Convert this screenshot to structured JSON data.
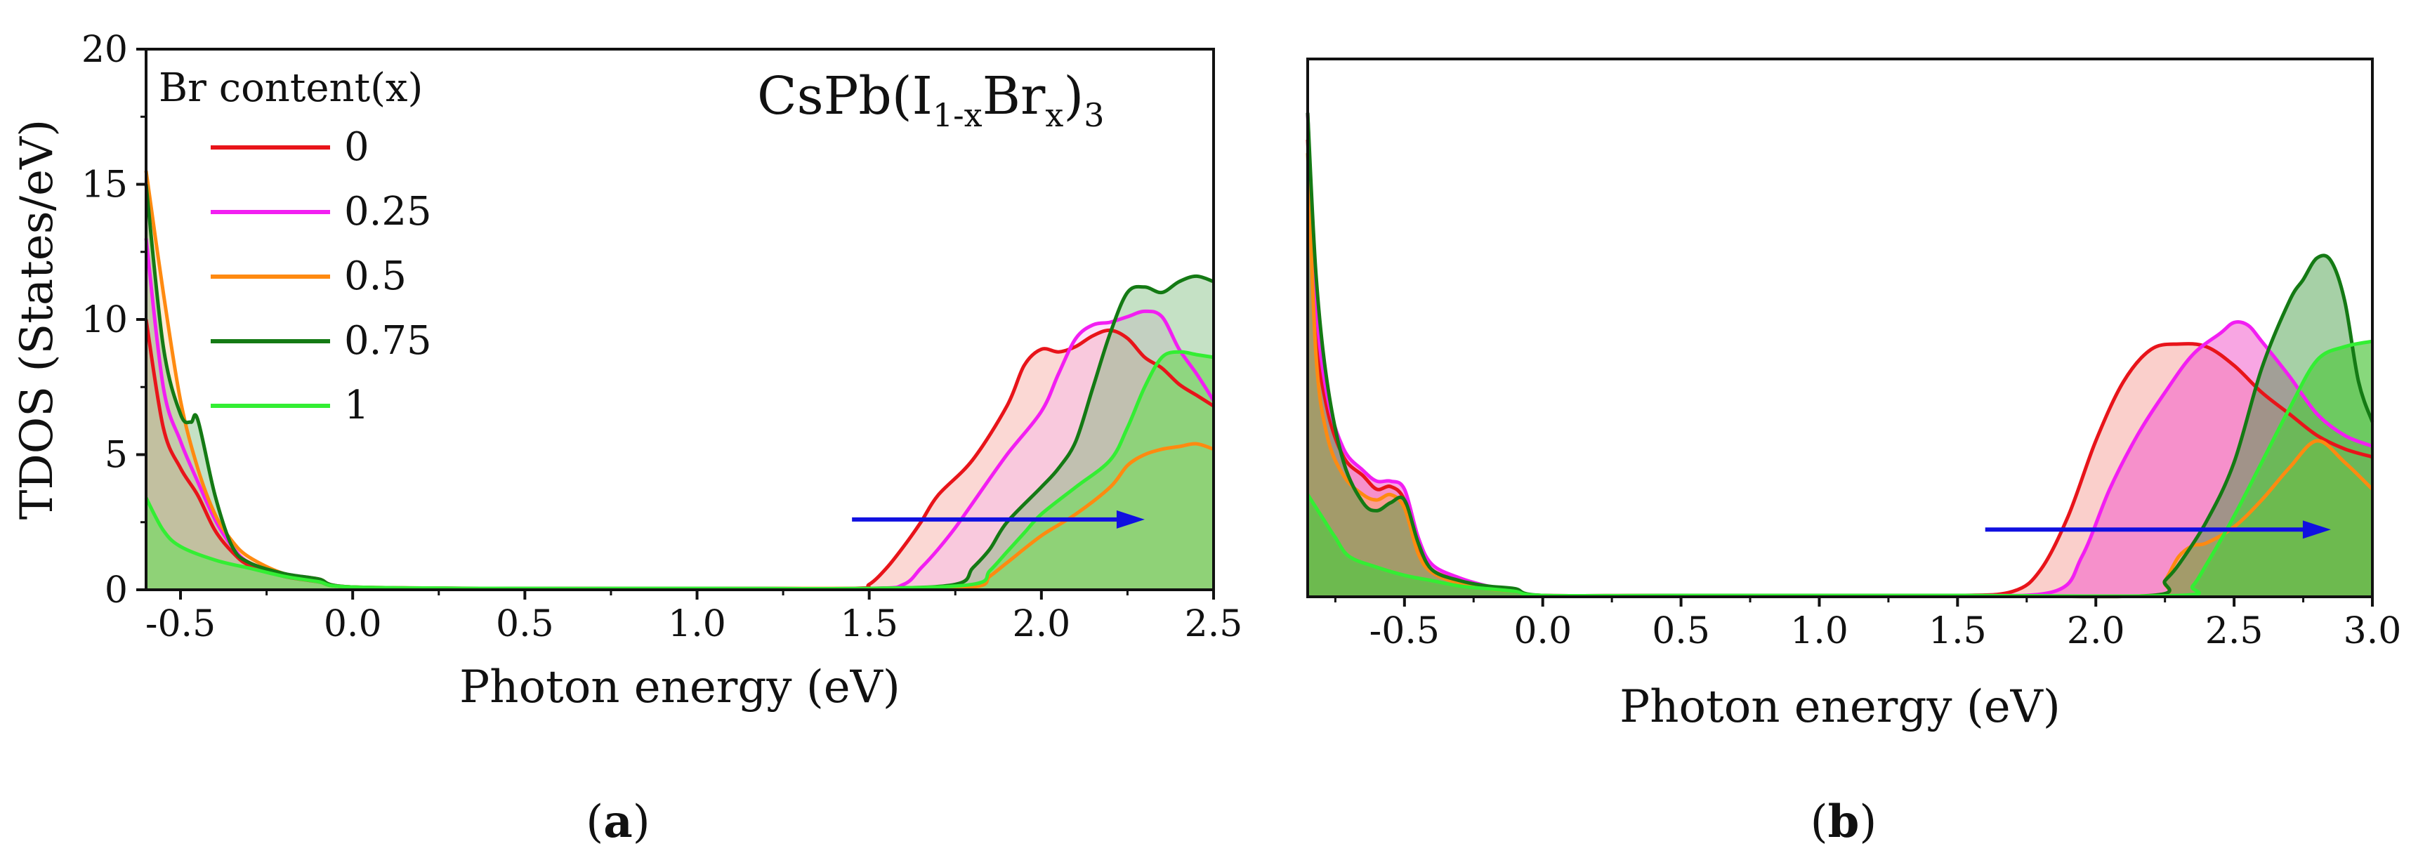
{
  "figure": {
    "panel_labels": [
      "(",
      "a",
      ")",
      "(",
      "b",
      ")"
    ]
  },
  "chart_data": [
    {
      "type": "area",
      "panel": "a",
      "xlabel": "Photon energy (eV)",
      "ylabel": "TDOS (States/eV)",
      "xlim": [
        -0.6,
        2.5
      ],
      "ylim": [
        0,
        20
      ],
      "xticks": [
        -0.5,
        0.0,
        0.5,
        1.0,
        1.5,
        2.0,
        2.5
      ],
      "xtick_labels": [
        "-0.5",
        "0.0",
        "0.5",
        "1.0",
        "1.5",
        "2.0",
        "2.5"
      ],
      "yticks": [
        0,
        5,
        10,
        15,
        20
      ],
      "ytick_labels": [
        "0",
        "5",
        "10",
        "15",
        "20"
      ],
      "grid": false,
      "formula": {
        "base": "CsPb(I",
        "sub1": "1-x",
        "mid": "Br",
        "sub2": "x",
        "close": ")",
        "sub3": "3"
      },
      "legend": {
        "title": "Br content(x)",
        "placement": "top-left"
      },
      "arrow": {
        "from": [
          1.45,
          2.6
        ],
        "to": [
          2.3,
          2.6
        ],
        "color": "#1010e0"
      },
      "series": [
        {
          "name": "0",
          "color": "#e8141a",
          "fill": "#f6a8a0",
          "fill_opacity": 0.45,
          "x": [
            -0.6,
            -0.55,
            -0.5,
            -0.45,
            -0.4,
            -0.35,
            -0.3,
            -0.2,
            -0.1,
            0.0,
            0.5,
            1.0,
            1.45,
            1.5,
            1.55,
            1.6,
            1.65,
            1.7,
            1.8,
            1.9,
            1.95,
            2.0,
            2.05,
            2.1,
            2.15,
            2.2,
            2.25,
            2.3,
            2.35,
            2.4,
            2.45,
            2.5
          ],
          "y": [
            10.0,
            6.0,
            4.5,
            3.5,
            2.2,
            1.4,
            0.9,
            0.5,
            0.3,
            0.1,
            0.05,
            0.05,
            0.05,
            0.2,
            0.8,
            1.6,
            2.5,
            3.5,
            4.8,
            6.8,
            8.3,
            8.9,
            8.8,
            9.0,
            9.4,
            9.6,
            9.3,
            8.6,
            8.2,
            7.6,
            7.2,
            6.8
          ]
        },
        {
          "name": "0.25",
          "color": "#f21ef2",
          "fill": "#f7b0ee",
          "fill_opacity": 0.35,
          "x": [
            -0.6,
            -0.55,
            -0.5,
            -0.45,
            -0.4,
            -0.35,
            -0.3,
            -0.2,
            -0.1,
            0.0,
            0.5,
            1.0,
            1.5,
            1.6,
            1.65,
            1.7,
            1.75,
            1.8,
            1.9,
            2.0,
            2.05,
            2.1,
            2.15,
            2.2,
            2.25,
            2.3,
            2.35,
            2.4,
            2.45,
            2.5
          ],
          "y": [
            13.0,
            7.5,
            5.5,
            4.0,
            2.6,
            1.6,
            1.0,
            0.6,
            0.4,
            0.1,
            0.05,
            0.05,
            0.05,
            0.2,
            0.8,
            1.5,
            2.3,
            3.2,
            5.0,
            6.6,
            8.0,
            9.3,
            9.8,
            9.9,
            10.1,
            10.3,
            10.1,
            8.9,
            8.0,
            7.0
          ]
        },
        {
          "name": "0.5",
          "color": "#ff8a10",
          "fill": "#ffc890",
          "fill_opacity": 0.35,
          "x": [
            -0.6,
            -0.55,
            -0.5,
            -0.45,
            -0.4,
            -0.35,
            -0.3,
            -0.2,
            -0.1,
            0.0,
            0.5,
            1.0,
            1.5,
            1.8,
            1.85,
            1.9,
            2.0,
            2.1,
            2.2,
            2.25,
            2.3,
            2.35,
            2.4,
            2.45,
            2.5
          ],
          "y": [
            15.5,
            11.0,
            7.0,
            4.5,
            2.8,
            1.8,
            1.2,
            0.6,
            0.4,
            0.1,
            0.05,
            0.05,
            0.05,
            0.1,
            0.5,
            1.0,
            2.0,
            2.8,
            3.8,
            4.6,
            5.0,
            5.2,
            5.3,
            5.4,
            5.2
          ]
        },
        {
          "name": "0.75",
          "color": "#147a14",
          "fill": "#6fb46f",
          "fill_opacity": 0.4,
          "x": [
            -0.6,
            -0.55,
            -0.5,
            -0.47,
            -0.45,
            -0.4,
            -0.35,
            -0.3,
            -0.2,
            -0.1,
            0.0,
            0.5,
            1.0,
            1.5,
            1.75,
            1.8,
            1.85,
            1.9,
            2.0,
            2.05,
            2.1,
            2.15,
            2.2,
            2.25,
            2.3,
            2.35,
            2.4,
            2.45,
            2.5
          ],
          "y": [
            15.0,
            9.0,
            6.5,
            6.2,
            6.3,
            3.5,
            1.6,
            1.0,
            0.6,
            0.4,
            0.1,
            0.05,
            0.05,
            0.05,
            0.2,
            0.8,
            1.5,
            2.5,
            3.8,
            4.5,
            5.5,
            7.5,
            9.5,
            11.0,
            11.2,
            11.0,
            11.4,
            11.6,
            11.4
          ]
        },
        {
          "name": "1",
          "color": "#33ee33",
          "fill": "#7dd86a",
          "fill_opacity": 0.75,
          "x": [
            -0.6,
            -0.55,
            -0.5,
            -0.4,
            -0.3,
            -0.2,
            -0.1,
            0.0,
            0.5,
            1.0,
            1.5,
            1.8,
            1.85,
            1.9,
            1.95,
            2.0,
            2.1,
            2.2,
            2.25,
            2.3,
            2.35,
            2.4,
            2.45,
            2.5
          ],
          "y": [
            3.4,
            2.2,
            1.6,
            1.1,
            0.8,
            0.5,
            0.3,
            0.1,
            0.05,
            0.05,
            0.05,
            0.2,
            0.7,
            1.4,
            2.1,
            2.8,
            3.8,
            4.8,
            6.0,
            7.5,
            8.6,
            8.8,
            8.7,
            8.6
          ]
        }
      ]
    },
    {
      "type": "area",
      "panel": "b",
      "xlabel": "Photon energy (eV)",
      "ylabel": "",
      "xlim": [
        -0.85,
        3.0
      ],
      "ylim": [
        0,
        20
      ],
      "xticks": [
        -0.5,
        0.0,
        0.5,
        1.0,
        1.5,
        2.0,
        2.5,
        3.0
      ],
      "xtick_labels": [
        "-0.5",
        "0.0",
        "0.5",
        "1.0",
        "1.5",
        "2.0",
        "2.5",
        "3.0"
      ],
      "yticks": [],
      "ytick_labels": [],
      "grid": false,
      "arrow": {
        "from": [
          1.6,
          2.5
        ],
        "to": [
          2.85,
          2.5
        ],
        "color": "#1010e0"
      },
      "series": [
        {
          "name": "0",
          "color": "#e8141a",
          "fill": "#f6a8a0",
          "fill_opacity": 0.55,
          "x": [
            -0.85,
            -0.82,
            -0.78,
            -0.72,
            -0.65,
            -0.6,
            -0.55,
            -0.5,
            -0.45,
            -0.4,
            -0.3,
            -0.2,
            -0.1,
            0.0,
            0.5,
            1.0,
            1.5,
            1.7,
            1.8,
            1.9,
            2.0,
            2.1,
            2.2,
            2.3,
            2.4,
            2.5,
            2.6,
            2.7,
            2.8,
            2.9,
            3.0
          ],
          "y": [
            17.0,
            10.0,
            7.0,
            5.2,
            4.5,
            4.0,
            4.1,
            3.6,
            1.8,
            1.0,
            0.6,
            0.4,
            0.2,
            0.05,
            0.05,
            0.05,
            0.05,
            0.2,
            1.0,
            3.0,
            5.8,
            8.0,
            9.2,
            9.4,
            9.3,
            8.6,
            7.6,
            6.8,
            6.0,
            5.5,
            5.2
          ]
        },
        {
          "name": "0.25",
          "color": "#f21ef2",
          "fill": "#f25ccc",
          "fill_opacity": 0.55,
          "x": [
            -0.85,
            -0.82,
            -0.78,
            -0.72,
            -0.65,
            -0.6,
            -0.55,
            -0.5,
            -0.45,
            -0.4,
            -0.3,
            -0.2,
            -0.1,
            0.0,
            0.5,
            1.0,
            1.5,
            1.85,
            1.95,
            2.05,
            2.15,
            2.25,
            2.35,
            2.45,
            2.5,
            2.55,
            2.6,
            2.7,
            2.8,
            2.9,
            3.0
          ],
          "y": [
            18.0,
            11.0,
            7.5,
            5.5,
            4.7,
            4.3,
            4.3,
            4.0,
            2.2,
            1.2,
            0.7,
            0.4,
            0.2,
            0.05,
            0.05,
            0.05,
            0.05,
            0.2,
            1.5,
            4.0,
            6.0,
            7.6,
            9.0,
            9.8,
            10.2,
            10.1,
            9.5,
            8.2,
            6.8,
            6.0,
            5.6
          ]
        },
        {
          "name": "0.5",
          "color": "#ff8a10",
          "fill": "#ffb050",
          "fill_opacity": 0.45,
          "x": [
            -0.85,
            -0.82,
            -0.78,
            -0.72,
            -0.65,
            -0.6,
            -0.55,
            -0.5,
            -0.45,
            -0.4,
            -0.3,
            -0.2,
            -0.1,
            0.0,
            0.5,
            1.0,
            1.5,
            2.2,
            2.25,
            2.3,
            2.35,
            2.4,
            2.5,
            2.6,
            2.7,
            2.8,
            2.9,
            3.0
          ],
          "y": [
            16.5,
            9.0,
            6.0,
            4.5,
            3.8,
            3.6,
            3.8,
            3.3,
            1.6,
            0.9,
            0.5,
            0.3,
            0.2,
            0.05,
            0.05,
            0.05,
            0.05,
            0.05,
            0.6,
            1.5,
            1.9,
            2.0,
            2.6,
            3.6,
            4.8,
            5.8,
            5.0,
            4.0
          ]
        },
        {
          "name": "0.75",
          "color": "#147a14",
          "fill": "#3a963a",
          "fill_opacity": 0.45,
          "x": [
            -0.85,
            -0.82,
            -0.78,
            -0.72,
            -0.65,
            -0.6,
            -0.55,
            -0.5,
            -0.45,
            -0.4,
            -0.3,
            -0.2,
            -0.1,
            0.0,
            0.5,
            1.0,
            1.5,
            2.2,
            2.25,
            2.3,
            2.4,
            2.5,
            2.6,
            2.7,
            2.75,
            2.8,
            2.85,
            2.9,
            2.95,
            3.0
          ],
          "y": [
            18.0,
            12.0,
            8.0,
            5.0,
            3.5,
            3.2,
            3.5,
            3.6,
            2.0,
            1.0,
            0.6,
            0.4,
            0.3,
            0.05,
            0.05,
            0.05,
            0.05,
            0.05,
            0.6,
            1.2,
            2.8,
            5.0,
            8.5,
            11.0,
            11.8,
            12.6,
            12.5,
            11.0,
            8.0,
            6.5
          ]
        },
        {
          "name": "1",
          "color": "#33ee33",
          "fill": "#55c845",
          "fill_opacity": 0.7,
          "x": [
            -0.85,
            -0.8,
            -0.75,
            -0.7,
            -0.6,
            -0.5,
            -0.4,
            -0.3,
            -0.2,
            -0.1,
            0.0,
            0.5,
            1.0,
            1.5,
            2.3,
            2.35,
            2.4,
            2.5,
            2.6,
            2.7,
            2.8,
            2.9,
            3.0
          ],
          "y": [
            3.8,
            3.0,
            2.2,
            1.5,
            1.1,
            0.8,
            0.6,
            0.4,
            0.3,
            0.2,
            0.05,
            0.05,
            0.05,
            0.05,
            0.05,
            0.4,
            1.2,
            3.0,
            5.0,
            7.0,
            8.8,
            9.3,
            9.5
          ]
        }
      ]
    }
  ]
}
